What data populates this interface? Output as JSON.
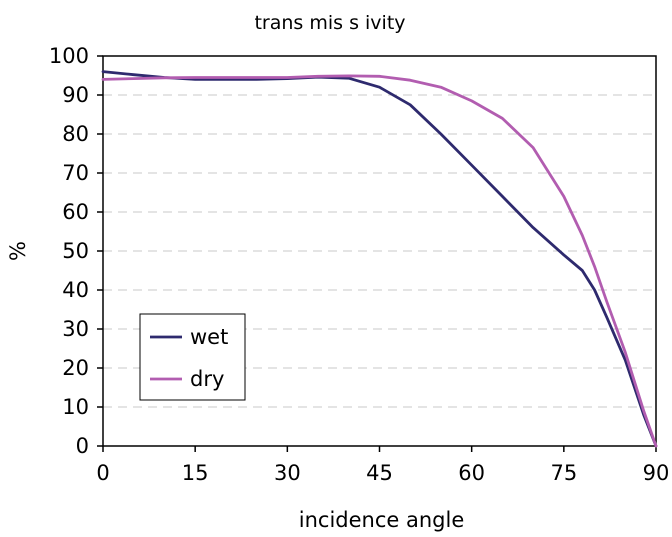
{
  "chart_data": {
    "type": "line",
    "title": "trans mis s ivity",
    "xlabel": "incidence angle",
    "ylabel": "%",
    "xlim": [
      0,
      90
    ],
    "ylim": [
      0,
      100
    ],
    "x_ticks": [
      0,
      15,
      30,
      45,
      60,
      75,
      90
    ],
    "y_ticks": [
      0,
      10,
      20,
      30,
      40,
      50,
      60,
      70,
      80,
      90,
      100
    ],
    "grid": "horizontal dashed",
    "legend_position": "bottom-left",
    "series": [
      {
        "name": "wet",
        "color": "#2e2a6e",
        "x": [
          0,
          5,
          10,
          15,
          20,
          25,
          30,
          35,
          40,
          45,
          50,
          55,
          60,
          65,
          70,
          75,
          78,
          80,
          82,
          85,
          88,
          90
        ],
        "y": [
          96,
          95.2,
          94.5,
          94,
          94,
          94,
          94.2,
          94.6,
          94.3,
          92,
          87.5,
          80,
          72,
          64,
          56,
          49,
          45,
          40,
          33,
          22,
          8,
          0
        ]
      },
      {
        "name": "dry",
        "color": "#b25db0",
        "x": [
          0,
          5,
          10,
          15,
          20,
          25,
          30,
          35,
          40,
          45,
          50,
          55,
          60,
          65,
          70,
          75,
          78,
          80,
          82,
          85,
          88,
          90
        ],
        "y": [
          94,
          94.2,
          94.4,
          94.5,
          94.5,
          94.5,
          94.5,
          94.8,
          94.9,
          94.8,
          93.8,
          92,
          88.5,
          84,
          76.5,
          64,
          54,
          46,
          37,
          24,
          9,
          0
        ]
      }
    ]
  }
}
